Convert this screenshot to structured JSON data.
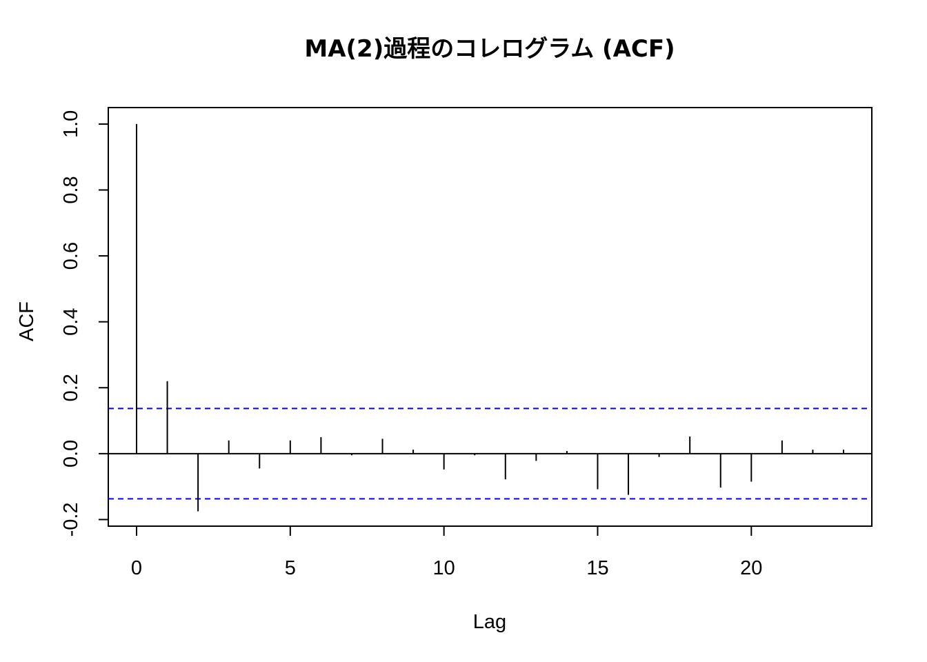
{
  "chart_data": {
    "type": "bar",
    "title": "MA(2)過程のコレログラム (ACF)",
    "xlabel": "Lag",
    "ylabel": "ACF",
    "xlim": [
      -0.92,
      23.92
    ],
    "ylim": [
      -0.22,
      1.05
    ],
    "xticks": [
      0,
      5,
      10,
      15,
      20
    ],
    "yticks": [
      -0.2,
      0.0,
      0.2,
      0.4,
      0.6,
      0.8,
      1.0
    ],
    "ytick_labels": [
      "-0.2",
      "0.0",
      "0.2",
      "0.4",
      "0.6",
      "0.8",
      "1.0"
    ],
    "lags": [
      0,
      1,
      2,
      3,
      4,
      5,
      6,
      7,
      8,
      9,
      10,
      11,
      12,
      13,
      14,
      15,
      16,
      17,
      18,
      19,
      20,
      21,
      22,
      23
    ],
    "acf": [
      1.0,
      0.22,
      -0.175,
      0.04,
      -0.045,
      0.04,
      0.05,
      -0.005,
      0.045,
      0.012,
      -0.048,
      -0.005,
      -0.078,
      -0.022,
      0.008,
      -0.108,
      -0.125,
      -0.01,
      0.052,
      -0.103,
      -0.085,
      0.04,
      0.012,
      0.012
    ],
    "conf_limit": 0.137,
    "grid": false,
    "legend": "none",
    "colors": {
      "bars": "#000000",
      "conf_lines": "#0000ff",
      "zero_line": "#000000"
    }
  }
}
